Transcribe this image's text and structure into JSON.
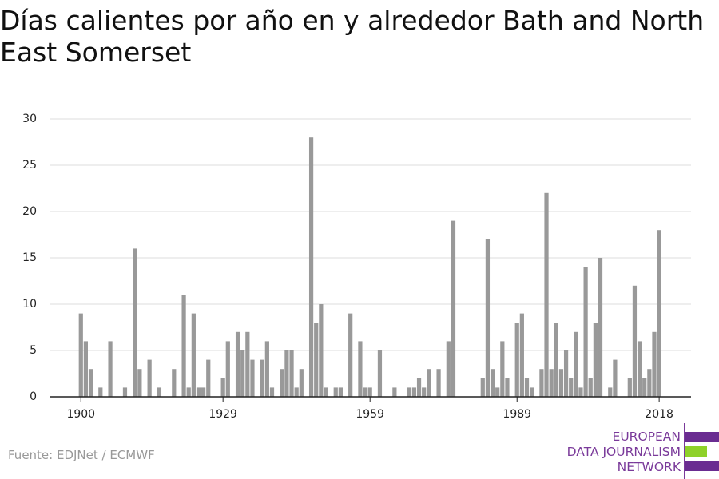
{
  "chart_data": {
    "type": "bar",
    "title": "Días calientes por año en y alrededor Bath and North East Somerset",
    "source": "Fuente: EDJNet / ECMWF",
    "logo": [
      "EUROPEAN",
      "DATA JOURNALISM",
      "NETWORK"
    ],
    "x": [
      1900,
      1901,
      1902,
      1903,
      1904,
      1905,
      1906,
      1907,
      1908,
      1909,
      1910,
      1911,
      1912,
      1913,
      1914,
      1915,
      1916,
      1917,
      1918,
      1919,
      1920,
      1921,
      1922,
      1923,
      1924,
      1925,
      1926,
      1927,
      1928,
      1929,
      1930,
      1931,
      1932,
      1933,
      1934,
      1935,
      1936,
      1937,
      1938,
      1939,
      1940,
      1941,
      1942,
      1943,
      1944,
      1945,
      1946,
      1947,
      1948,
      1949,
      1950,
      1951,
      1952,
      1953,
      1954,
      1955,
      1956,
      1957,
      1958,
      1959,
      1960,
      1961,
      1962,
      1963,
      1964,
      1965,
      1966,
      1967,
      1968,
      1969,
      1970,
      1971,
      1972,
      1973,
      1974,
      1975,
      1976,
      1977,
      1978,
      1979,
      1980,
      1981,
      1982,
      1983,
      1984,
      1985,
      1986,
      1987,
      1988,
      1989,
      1990,
      1991,
      1992,
      1993,
      1994,
      1995,
      1996,
      1997,
      1998,
      1999,
      2000,
      2001,
      2002,
      2003,
      2004,
      2005,
      2006,
      2007,
      2008,
      2009,
      2010,
      2011,
      2012,
      2013,
      2014,
      2015,
      2016,
      2017,
      2018
    ],
    "values": [
      9,
      6,
      3,
      0,
      1,
      0,
      6,
      0,
      0,
      1,
      0,
      16,
      3,
      0,
      4,
      0,
      1,
      0,
      0,
      3,
      0,
      11,
      1,
      9,
      1,
      1,
      4,
      0,
      0,
      2,
      6,
      0,
      7,
      5,
      7,
      4,
      0,
      4,
      6,
      1,
      0,
      3,
      5,
      5,
      1,
      3,
      0,
      28,
      8,
      10,
      1,
      0,
      1,
      1,
      0,
      9,
      0,
      6,
      1,
      1,
      0,
      5,
      0,
      0,
      1,
      0,
      0,
      1,
      1,
      2,
      1,
      3,
      0,
      3,
      0,
      6,
      19,
      0,
      0,
      0,
      0,
      0,
      2,
      17,
      3,
      1,
      6,
      2,
      0,
      8,
      9,
      2,
      1,
      0,
      3,
      22,
      3,
      8,
      3,
      5,
      2,
      7,
      1,
      14,
      2,
      8,
      15,
      0,
      1,
      4,
      0,
      0,
      2,
      12,
      6,
      2,
      3,
      7,
      18
    ],
    "color": "#999999",
    "xlim": [
      1893.6,
      2024.5
    ],
    "xticks": [
      1900,
      1929,
      1959,
      1989,
      2018
    ],
    "ylim": [
      0,
      30
    ],
    "yticks": [
      0,
      5,
      10,
      15,
      20,
      25,
      30
    ],
    "grid": true
  }
}
